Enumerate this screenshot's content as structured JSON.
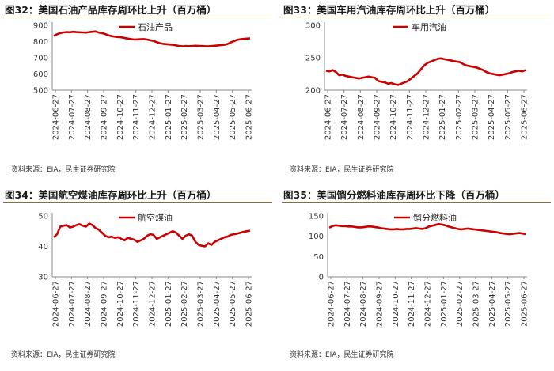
{
  "chart_data": [
    {
      "type": "line",
      "title": "图32：美国石油产品库存周环比上升（百万桶）",
      "source": "资料来源：EIA，民生证券研究院",
      "series": [
        {
          "name": "石油产品",
          "color": "#cc0000",
          "values": [
            835,
            845,
            852,
            856,
            858,
            857,
            860,
            858,
            857,
            856,
            855,
            858,
            860,
            862,
            855,
            852,
            846,
            838,
            833,
            830,
            828,
            826,
            822,
            818,
            815,
            812,
            813,
            814,
            815,
            812,
            808,
            804,
            796,
            790,
            786,
            784,
            782,
            780,
            776,
            772,
            770,
            772,
            771,
            772,
            774,
            773,
            772,
            771,
            770,
            772,
            774,
            776,
            778,
            780,
            785,
            795,
            803,
            810,
            814,
            816,
            818,
            820
          ]
        }
      ],
      "x_ticks": [
        "2024-06-27",
        "2024-07-27",
        "2024-08-27",
        "2024-09-27",
        "2024-10-27",
        "2024-11-27",
        "2024-12-27",
        "2025-01-27",
        "2025-02-27",
        "2025-03-27",
        "2025-04-27",
        "2025-05-27",
        "2025-06-27"
      ],
      "y_ticks": [
        500,
        600,
        700,
        800,
        900
      ],
      "ylim": [
        500,
        900
      ],
      "legend": "top-center"
    },
    {
      "type": "line",
      "title": "图33：美国车用汽油库存周环比上升（百万桶）",
      "source": "资料来源：EIA，民生证券研究院",
      "series": [
        {
          "name": "车用汽油",
          "color": "#cc0000",
          "values": [
            230,
            229,
            231,
            228,
            223,
            224,
            222,
            221,
            220,
            219,
            218,
            219,
            220,
            221,
            220,
            219,
            214,
            213,
            212,
            210,
            211,
            209,
            208,
            210,
            212,
            214,
            218,
            222,
            226,
            232,
            238,
            242,
            244,
            246,
            248,
            249,
            248,
            247,
            246,
            245,
            244,
            243,
            240,
            238,
            237,
            236,
            235,
            233,
            231,
            228,
            226,
            225,
            224,
            223,
            224,
            225,
            226,
            228,
            229,
            230,
            229,
            231
          ]
        }
      ],
      "x_ticks": [
        "2024-06-27",
        "2024-07-27",
        "2024-08-27",
        "2024-09-27",
        "2024-10-27",
        "2024-11-27",
        "2024-12-27",
        "2025-01-27",
        "2025-02-27",
        "2025-03-27",
        "2025-04-27",
        "2025-05-27",
        "2025-06-27"
      ],
      "y_ticks": [
        200,
        250,
        300
      ],
      "ylim": [
        200,
        300
      ],
      "legend": "top-center"
    },
    {
      "type": "line",
      "title": "图34：美国航空煤油库存周环比上升（百万桶）",
      "source": "资料来源：EIA，民生证券研究院",
      "series": [
        {
          "name": "航空煤油",
          "color": "#cc0000",
          "values": [
            43,
            44,
            46.5,
            46.8,
            47,
            46.2,
            46.5,
            47,
            47.3,
            46.8,
            46.5,
            47.5,
            47,
            46,
            45.5,
            44.5,
            43.5,
            43,
            43.2,
            42.8,
            43,
            42.5,
            42,
            42.8,
            42.5,
            42.2,
            41.5,
            42,
            42.5,
            43.5,
            44,
            43.8,
            42.5,
            43,
            43.5,
            44,
            44.5,
            45,
            44.5,
            43.5,
            42.5,
            43.5,
            44,
            43.5,
            41.5,
            40.5,
            40.2,
            40,
            41,
            40.5,
            41.5,
            42,
            42.5,
            43,
            43.2,
            43.8,
            44,
            44.2,
            44.5,
            44.8,
            45,
            45.2
          ]
        }
      ],
      "x_ticks": [
        "2024-06-27",
        "2024-07-27",
        "2024-08-27",
        "2024-09-27",
        "2024-10-27",
        "2024-11-27",
        "2024-12-27",
        "2025-01-27",
        "2025-02-27",
        "2025-03-27",
        "2025-04-27",
        "2025-05-27",
        "2025-06-27"
      ],
      "y_ticks": [
        30,
        40,
        50
      ],
      "ylim": [
        30,
        50
      ],
      "legend": "top-center"
    },
    {
      "type": "line",
      "title": "图35：美国馏分燃料油库存周环比下降（百万桶）",
      "source": "资料来源：EIA，民生证券研究院",
      "series": [
        {
          "name": "馏分燃料油",
          "color": "#cc0000",
          "values": [
            121,
            125,
            127,
            126,
            125,
            125,
            124,
            124,
            123,
            122,
            122,
            123,
            124,
            124,
            123,
            122,
            120,
            119,
            118,
            117,
            117,
            118,
            117,
            117,
            118,
            118,
            119,
            120,
            119,
            118,
            120,
            124,
            126,
            128,
            130,
            129,
            127,
            124,
            122,
            120,
            118,
            117,
            118,
            119,
            118,
            117,
            116,
            115,
            114,
            113,
            112,
            111,
            110,
            108,
            107,
            106,
            105,
            106,
            107,
            108,
            107,
            105
          ]
        }
      ],
      "x_ticks": [
        "2024-06-27",
        "2024-07-27",
        "2024-08-27",
        "2024-09-27",
        "2024-10-27",
        "2024-11-27",
        "2024-12-27",
        "2025-01-27",
        "2025-02-27",
        "2025-03-27",
        "2025-04-27",
        "2025-05-27",
        "2025-06-27"
      ],
      "y_ticks": [
        0,
        50,
        100,
        150
      ],
      "ylim": [
        0,
        150
      ],
      "legend": "top-center"
    }
  ]
}
